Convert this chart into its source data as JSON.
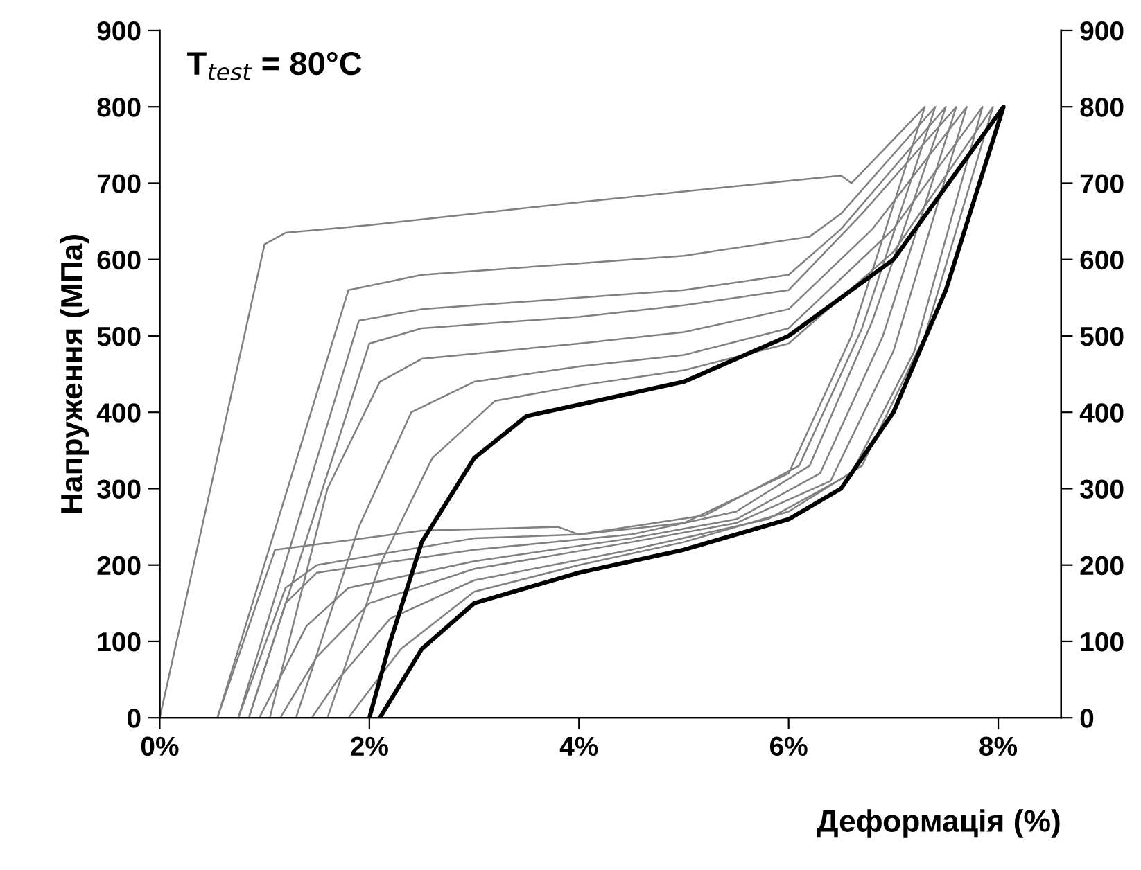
{
  "chart_data": {
    "type": "line",
    "xlabel": "Деформація (%)",
    "ylabel": "Напруження (МПа)",
    "annotations": [
      "T$_{test}$ = 80°C"
    ],
    "xlim": [
      0,
      8.6
    ],
    "ylim": [
      0,
      900
    ],
    "y2lim": [
      0,
      900
    ],
    "xticks": [
      {
        "value": 0,
        "label": "0%"
      },
      {
        "value": 2,
        "label": "2%"
      },
      {
        "value": 4,
        "label": "4%"
      },
      {
        "value": 6,
        "label": "6%"
      },
      {
        "value": 8,
        "label": "8%"
      }
    ],
    "yticks": [
      0,
      100,
      200,
      300,
      400,
      500,
      600,
      700,
      800,
      900
    ],
    "y2ticks": [
      0,
      100,
      200,
      300,
      400,
      500,
      600,
      700,
      800,
      900
    ],
    "grid": false,
    "legend": false,
    "marker": "none",
    "line_style": "solid",
    "series": [
      {
        "color": "#808080",
        "x": [
          0,
          1.0,
          1.2,
          2,
          4,
          6.5,
          6.6,
          7.3,
          6.6,
          6.0,
          5,
          4,
          3.8,
          2.5,
          1.1,
          0.55
        ],
        "values": [
          0,
          620,
          635,
          645,
          675,
          710,
          700,
          800,
          500,
          320,
          255,
          240,
          250,
          245,
          220,
          0
        ]
      },
      {
        "color": "#808080",
        "x": [
          0.55,
          1.8,
          2.5,
          4,
          5,
          6.2,
          6.5,
          7.4,
          6.7,
          6.1,
          5.2,
          4,
          3,
          1.5,
          1.2,
          0.75
        ],
        "values": [
          0,
          560,
          580,
          595,
          605,
          630,
          660,
          800,
          510,
          330,
          265,
          240,
          235,
          200,
          170,
          0
        ]
      },
      {
        "color": "#808080",
        "x": [
          0.75,
          1.9,
          2.5,
          4,
          5,
          6,
          6.5,
          7.5,
          6.8,
          6.2,
          5.5,
          4.5,
          3,
          1.5,
          1.2,
          0.85
        ],
        "values": [
          0,
          520,
          535,
          550,
          560,
          580,
          640,
          800,
          520,
          330,
          270,
          240,
          220,
          190,
          150,
          0
        ]
      },
      {
        "color": "#808080",
        "x": [
          0.85,
          2.0,
          2.5,
          4,
          5,
          6,
          6.7,
          7.6,
          6.9,
          6.3,
          5.5,
          4.5,
          3,
          1.8,
          1.4,
          0.95
        ],
        "values": [
          0,
          490,
          510,
          525,
          540,
          560,
          660,
          800,
          500,
          320,
          260,
          235,
          205,
          170,
          120,
          0
        ]
      },
      {
        "color": "#808080",
        "x": [
          1.05,
          1.6,
          2.1,
          2.5,
          4,
          5,
          6,
          6.8,
          7.7,
          7.0,
          6.4,
          5.5,
          4.5,
          3,
          2.0,
          1.5,
          1.15
        ],
        "values": [
          0,
          300,
          440,
          470,
          490,
          505,
          535,
          640,
          800,
          480,
          310,
          255,
          230,
          195,
          150,
          80,
          0
        ]
      },
      {
        "color": "#808080",
        "x": [
          1.3,
          1.9,
          2.4,
          3,
          4,
          5,
          6,
          7,
          7.85,
          7.2,
          6.6,
          5.8,
          4.5,
          3,
          2.2,
          1.7,
          1.45
        ],
        "values": [
          0,
          250,
          400,
          440,
          460,
          475,
          510,
          640,
          800,
          480,
          320,
          260,
          220,
          180,
          130,
          50,
          0
        ]
      },
      {
        "color": "#808080",
        "x": [
          1.6,
          2.1,
          2.6,
          3.2,
          4,
          5,
          6,
          7,
          7.95,
          7.3,
          6.7,
          6,
          5,
          4,
          3,
          2.3,
          1.8
        ],
        "values": [
          0,
          200,
          340,
          415,
          435,
          455,
          490,
          610,
          800,
          500,
          330,
          270,
          230,
          200,
          165,
          90,
          0
        ]
      },
      {
        "color": "#000000",
        "x": [
          2.0,
          2.2,
          2.5,
          3,
          3.5,
          4,
          5,
          6,
          7,
          8.05,
          7.5,
          7,
          6.5,
          6,
          5,
          4,
          3,
          2.5,
          2.1
        ],
        "values": [
          0,
          100,
          230,
          340,
          395,
          410,
          440,
          500,
          600,
          800,
          560,
          400,
          300,
          260,
          220,
          190,
          150,
          90,
          0
        ]
      }
    ]
  }
}
